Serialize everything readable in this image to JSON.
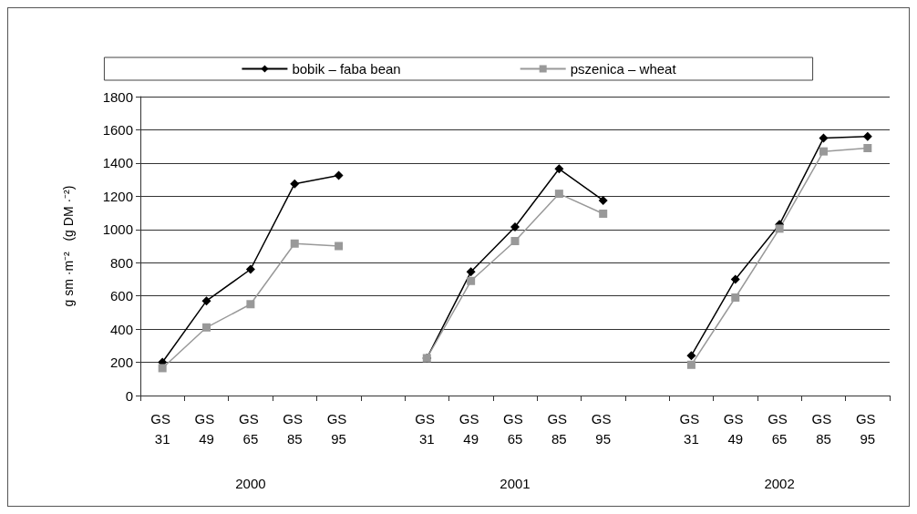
{
  "chart_data": {
    "type": "line",
    "ylabel": "g sm ·m⁻²   (g DM ·⁻²)",
    "categories": [
      "GS 31",
      "GS 49",
      "GS 65",
      "GS 85",
      "GS 95",
      null,
      "GS 31",
      "GS 49",
      "GS 65",
      "GS 85",
      "GS 95",
      null,
      "GS 31",
      "GS 49",
      "GS 65",
      "GS 85",
      "GS 95"
    ],
    "series": [
      {
        "name": "bobik – faba bean",
        "color": "#000000",
        "marker": "diamond",
        "values": [
          200,
          570,
          760,
          1275,
          1325,
          null,
          225,
          745,
          1015,
          1365,
          1175,
          null,
          240,
          700,
          1030,
          1550,
          1560
        ]
      },
      {
        "name": "pszenica – wheat",
        "color": "#999999",
        "marker": "square",
        "values": [
          165,
          410,
          550,
          915,
          900,
          null,
          225,
          690,
          930,
          1215,
          1095,
          null,
          185,
          590,
          1005,
          1470,
          1490
        ]
      }
    ],
    "annotations": [
      "2000",
      "2001",
      "2002"
    ],
    "ylim": [
      0,
      1800
    ],
    "yticks": [
      0,
      200,
      400,
      600,
      800,
      1000,
      1200,
      1400,
      1600,
      1800
    ],
    "grid": "y",
    "legend": "top"
  }
}
